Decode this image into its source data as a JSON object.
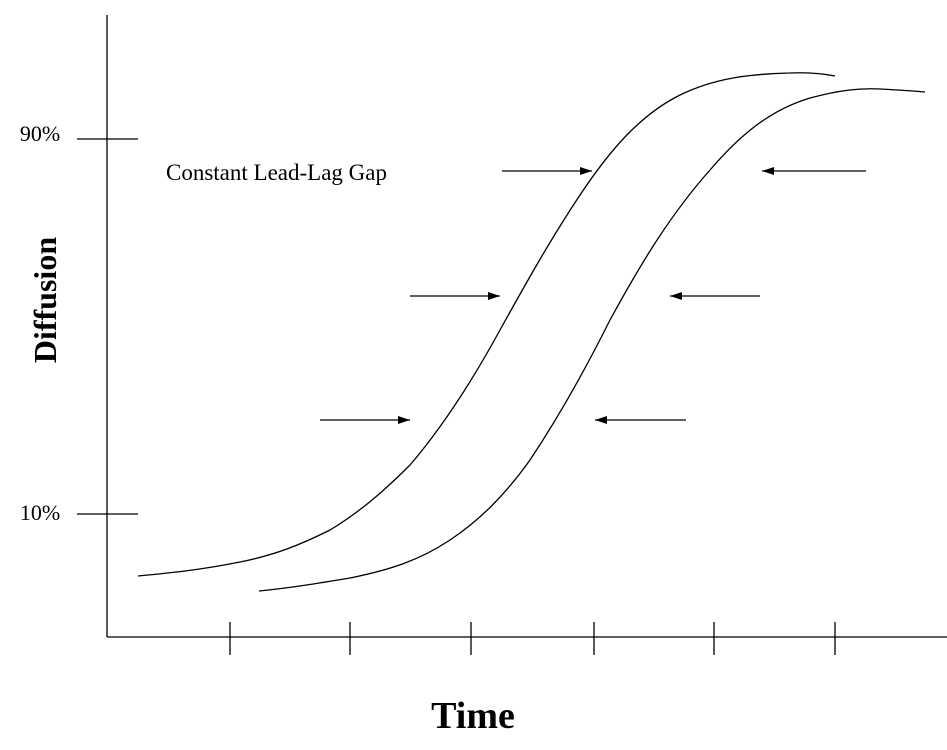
{
  "axes": {
    "y_label": "Diffusion",
    "x_label": "Time",
    "y_ticks": [
      "90%",
      "10%"
    ]
  },
  "annotation": "Constant Lead-Lag Gap"
}
